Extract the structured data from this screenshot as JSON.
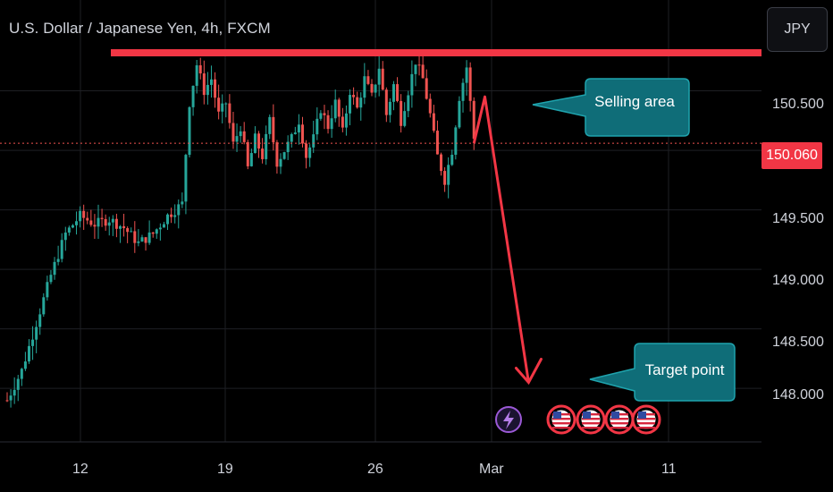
{
  "header": {
    "title": "U.S. Dollar / Japanese Yen, 4h, FXCM",
    "currency_button": "JPY"
  },
  "colors": {
    "background": "#000000",
    "up": "#26a69a",
    "down": "#ef5350",
    "grid": "#1e1f24",
    "resistance": "#f23645",
    "callout_fill": "#0f6d78",
    "callout_border": "#1fa3ad",
    "arrow": "#f23645"
  },
  "chart_data": {
    "type": "candlestick",
    "title": "U.S. Dollar / Japanese Yen, 4h, FXCM",
    "y_ticks": [
      "150.500",
      "150.000",
      "149.500",
      "149.000",
      "148.500",
      "148.000"
    ],
    "x_ticks": [
      "12",
      "19",
      "26",
      "Mar",
      "11"
    ],
    "ylim": [
      147.55,
      150.85
    ],
    "last_price_label": "150.060",
    "last_price": 150.06,
    "resistance_level": 150.82,
    "path_points": [
      [
        0,
        147.9
      ],
      [
        4,
        148.15
      ],
      [
        8,
        148.55
      ],
      [
        12,
        148.95
      ],
      [
        16,
        149.3
      ],
      [
        20,
        149.45
      ],
      [
        24,
        149.38
      ],
      [
        28,
        149.42
      ],
      [
        32,
        149.35
      ],
      [
        36,
        149.22
      ],
      [
        40,
        149.3
      ],
      [
        44,
        149.45
      ],
      [
        48,
        149.55
      ],
      [
        50,
        150.4
      ],
      [
        52,
        150.72
      ],
      [
        54,
        150.5
      ],
      [
        56,
        150.6
      ],
      [
        58,
        150.3
      ],
      [
        60,
        150.4
      ],
      [
        62,
        150.05
      ],
      [
        64,
        150.2
      ],
      [
        66,
        149.85
      ],
      [
        68,
        150.1
      ],
      [
        70,
        149.95
      ],
      [
        72,
        150.25
      ],
      [
        74,
        149.9
      ],
      [
        76,
        150.0
      ],
      [
        78,
        150.1
      ],
      [
        80,
        150.25
      ],
      [
        82,
        149.95
      ],
      [
        84,
        150.1
      ],
      [
        86,
        150.35
      ],
      [
        88,
        150.2
      ],
      [
        90,
        150.4
      ],
      [
        92,
        150.15
      ],
      [
        94,
        150.5
      ],
      [
        96,
        150.35
      ],
      [
        98,
        150.6
      ],
      [
        100,
        150.45
      ],
      [
        102,
        150.7
      ],
      [
        104,
        150.3
      ],
      [
        106,
        150.55
      ],
      [
        108,
        150.25
      ],
      [
        110,
        150.5
      ],
      [
        112,
        150.75
      ],
      [
        114,
        150.6
      ],
      [
        116,
        150.3
      ],
      [
        118,
        149.95
      ],
      [
        120,
        149.75
      ],
      [
        122,
        150.0
      ],
      [
        124,
        150.45
      ],
      [
        126,
        150.7
      ],
      [
        128,
        150.1
      ]
    ],
    "target_arrow": {
      "from": [
        128,
        150.06
      ],
      "peak": [
        131,
        150.45
      ],
      "to": [
        143,
        148.05
      ]
    },
    "annotations": [
      {
        "label": "Selling area",
        "anchor": [
          131,
          150.45
        ]
      },
      {
        "label": "Target point",
        "anchor": [
          143,
          148.05
        ]
      }
    ],
    "event_icons": [
      "lightning-event-icon",
      "us-flag-event-icon",
      "us-flag-event-icon",
      "us-flag-event-icon",
      "us-flag-event-icon"
    ]
  }
}
